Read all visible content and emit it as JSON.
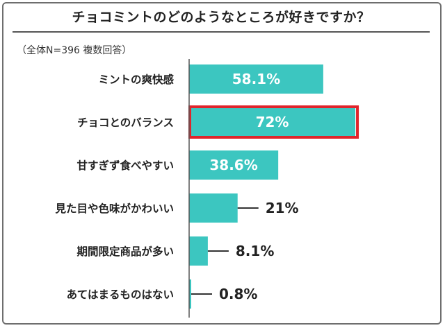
{
  "title": "チョコミントのどのようなところが好きですか？",
  "note": "（全体N=396 複数回答）",
  "colors": {
    "bar": "#3cc6c0",
    "highlight_border": "#e0242b",
    "axis": "#555555",
    "leader": "#333333"
  },
  "chart_data": {
    "type": "bar",
    "orientation": "horizontal",
    "categories": [
      "ミントの爽快感",
      "チョコとのバランス",
      "甘すぎず食べやすい",
      "見た目や色味がかわいい",
      "期間限定商品が多い",
      "あてはまるものはない"
    ],
    "values": [
      58.1,
      72,
      38.6,
      21,
      8.1,
      0.8
    ],
    "value_labels": [
      "58.1%",
      "72%",
      "38.6%",
      "21%",
      "8.1%",
      "0.8%"
    ],
    "highlighted_index": 1,
    "xlim": [
      0,
      100
    ],
    "grid": false,
    "legend": "none"
  }
}
